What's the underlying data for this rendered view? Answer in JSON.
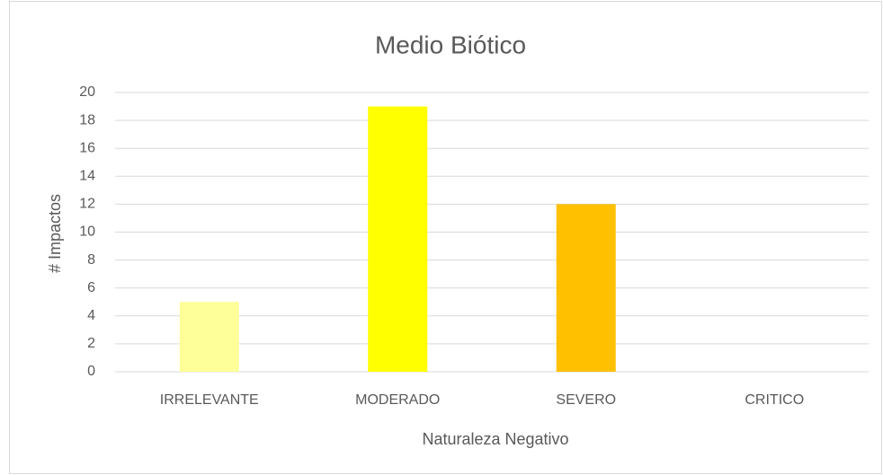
{
  "chart_data": {
    "type": "bar",
    "title": "Medio Biótico",
    "categories": [
      "IRRELEVANTE",
      "MODERADO",
      "SEVERO",
      "CRITICO"
    ],
    "values": [
      5,
      19,
      12,
      0
    ],
    "colors": [
      "#FFFF99",
      "#FFFF00",
      "#FFC000",
      "#FF0000"
    ],
    "xlabel": "Naturaleza Negativo",
    "ylabel": "# Impactos",
    "ylim": [
      0,
      20
    ],
    "yticks": [
      0,
      2,
      4,
      6,
      8,
      10,
      12,
      14,
      16,
      18,
      20
    ],
    "grid": true
  }
}
